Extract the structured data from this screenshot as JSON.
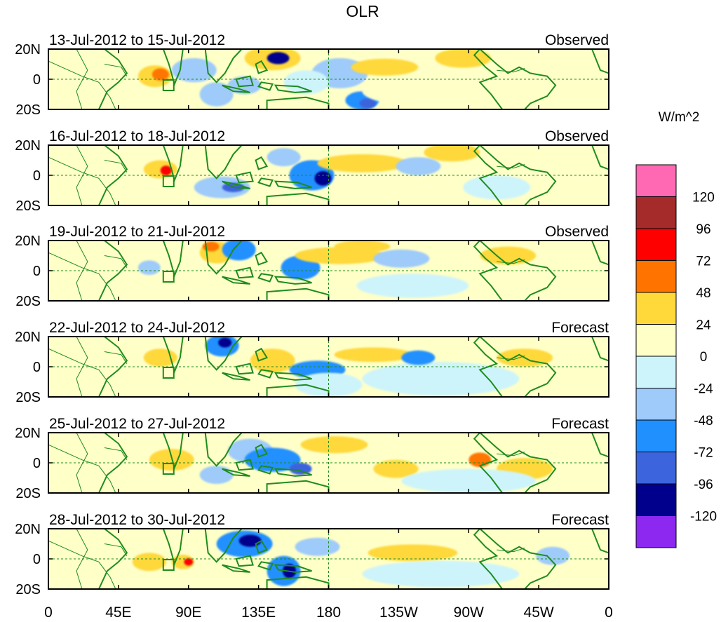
{
  "title": "OLR",
  "panels": [
    {
      "date_range": "13-Jul-2012 to 15-Jul-2012",
      "status": "Observed"
    },
    {
      "date_range": "16-Jul-2012 to 18-Jul-2012",
      "status": "Observed"
    },
    {
      "date_range": "19-Jul-2012 to 21-Jul-2012",
      "status": "Observed"
    },
    {
      "date_range": "22-Jul-2012 to 24-Jul-2012",
      "status": "Forecast"
    },
    {
      "date_range": "25-Jul-2012 to 27-Jul-2012",
      "status": "Forecast"
    },
    {
      "date_range": "28-Jul-2012 to 30-Jul-2012",
      "status": "Forecast"
    }
  ],
  "lat_ticks": [
    "20N",
    "0",
    "20S"
  ],
  "lon_ticks": [
    "0",
    "45E",
    "90E",
    "135E",
    "180",
    "135W",
    "90W",
    "45W",
    "0"
  ],
  "colorbar": {
    "units": "W/m^2",
    "labels": [
      "120",
      "96",
      "72",
      "48",
      "24",
      "0",
      "-24",
      "-48",
      "-72",
      "-96",
      "-120"
    ],
    "colors": [
      "#ff69b4",
      "#a52a2a",
      "#ff0000",
      "#ff7400",
      "#ffd83a",
      "#ffffc8",
      "#cdf4fa",
      "#9ecbfa",
      "#2090ff",
      "#3c64dc",
      "#00008c",
      "#8c28f0"
    ]
  },
  "map_colors": {
    "coast": "#1e8c1e",
    "grid": "#1e8c1e",
    "box": "#1e8c1e"
  }
}
